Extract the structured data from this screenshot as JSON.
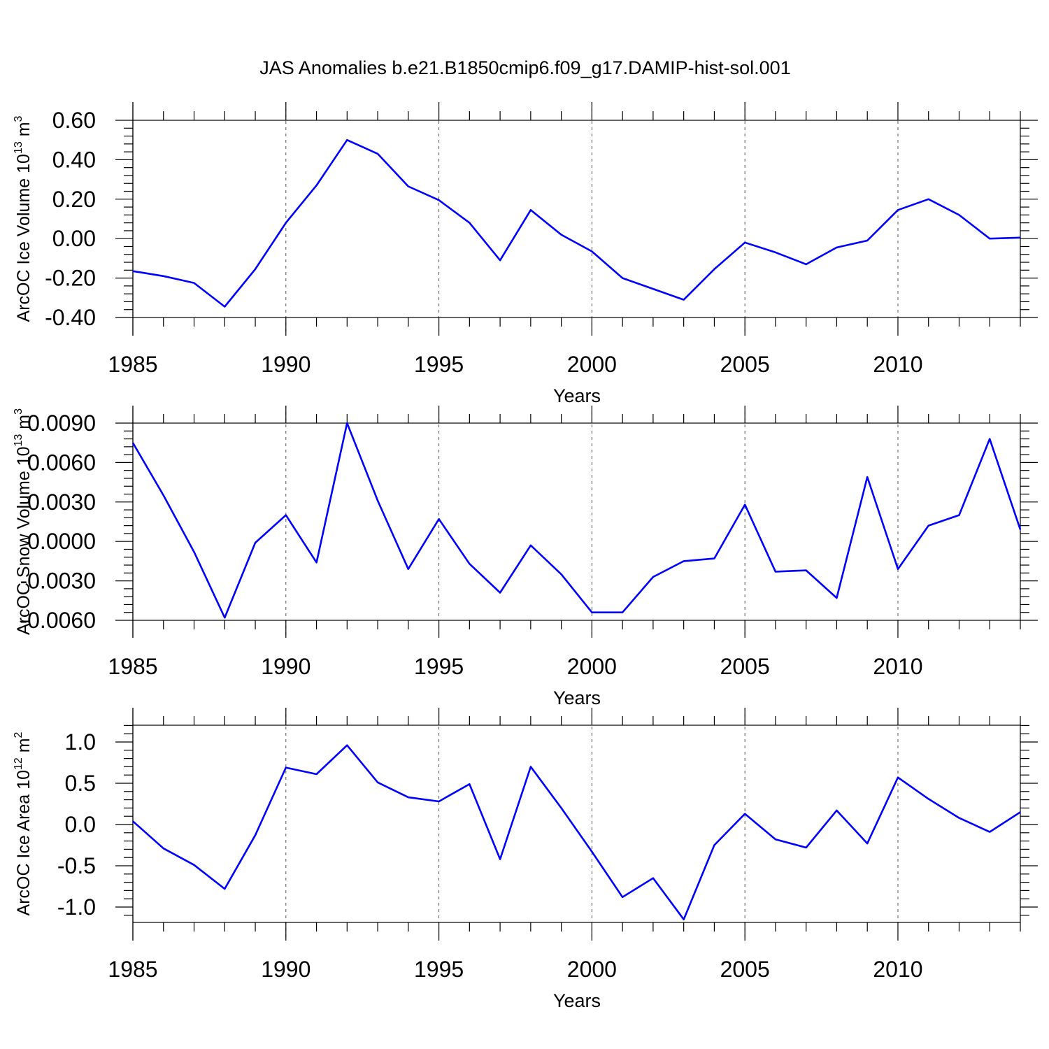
{
  "title": "JAS Anomalies b.e21.B1850cmip6.f09_g17.DAMIP-hist-sol.001",
  "colors": {
    "series": "#0000ff",
    "axis": "#000000",
    "grid": "#555555"
  },
  "chart_data": [
    {
      "type": "line",
      "title": "JAS Anomalies b.e21.B1850cmip6.f09_g17.DAMIP-hist-sol.001",
      "xlabel": "Years",
      "ylabel": {
        "text": "ArcOC Ice Volume 10",
        "exp": "13",
        "unit": " m",
        "unitExp": "3"
      },
      "xlim": [
        1985,
        2014
      ],
      "ylim": [
        -0.4,
        0.6
      ],
      "xticks": [
        1985,
        1990,
        1995,
        2000,
        2005,
        2010
      ],
      "xtick_labels": [
        "1985",
        "1990",
        "1995",
        "2000",
        "2005",
        "2010"
      ],
      "yticks": [
        -0.4,
        -0.2,
        0.0,
        0.2,
        0.4,
        0.6
      ],
      "ytick_labels": [
        "-0.40",
        "-0.20",
        "0.00",
        "0.20",
        "0.40",
        "0.60"
      ],
      "x": [
        1985,
        1986,
        1987,
        1988,
        1989,
        1990,
        1991,
        1992,
        1993,
        1994,
        1995,
        1996,
        1997,
        1998,
        1999,
        2000,
        2001,
        2002,
        2003,
        2004,
        2005,
        2006,
        2007,
        2008,
        2009,
        2010,
        2011,
        2012,
        2013,
        2014
      ],
      "series": [
        {
          "name": "ArcOC Ice Volume",
          "values": [
            -0.165,
            -0.19,
            -0.225,
            -0.345,
            -0.155,
            0.08,
            0.27,
            0.5,
            0.43,
            0.265,
            0.195,
            0.08,
            -0.11,
            0.145,
            0.02,
            -0.065,
            -0.2,
            -0.255,
            -0.31,
            -0.155,
            -0.02,
            -0.07,
            -0.13,
            -0.045,
            -0.01,
            0.145,
            0.2,
            0.12,
            0.0,
            0.005
          ]
        }
      ]
    },
    {
      "type": "line",
      "xlabel": "Years",
      "ylabel": {
        "text": "ArcOC Snow Volume 10",
        "exp": "13",
        "unit": " m",
        "unitExp": "3"
      },
      "xlim": [
        1985,
        2014
      ],
      "ylim": [
        -0.006,
        0.009
      ],
      "xticks": [
        1985,
        1990,
        1995,
        2000,
        2005,
        2010
      ],
      "xtick_labels": [
        "1985",
        "1990",
        "1995",
        "2000",
        "2005",
        "2010"
      ],
      "yticks": [
        -0.006,
        -0.003,
        0.0,
        0.003,
        0.006,
        0.009
      ],
      "ytick_labels": [
        "-0.0060",
        "-0.0030",
        "0.0000",
        "0.0030",
        "0.0060",
        "0.0090"
      ],
      "x": [
        1985,
        1986,
        1987,
        1988,
        1989,
        1990,
        1991,
        1992,
        1993,
        1994,
        1995,
        1996,
        1997,
        1998,
        1999,
        2000,
        2001,
        2002,
        2003,
        2004,
        2005,
        2006,
        2007,
        2008,
        2009,
        2010,
        2011,
        2012,
        2013,
        2014
      ],
      "series": [
        {
          "name": "ArcOC Snow Volume",
          "values": [
            0.0075,
            0.0035,
            -0.0008,
            -0.0058,
            -0.0001,
            0.002,
            -0.0016,
            0.009,
            0.0031,
            -0.0021,
            0.0017,
            -0.0017,
            -0.0039,
            -0.0003,
            -0.0025,
            -0.0054,
            -0.0054,
            -0.0027,
            -0.0015,
            -0.0013,
            0.0028,
            -0.0023,
            -0.0022,
            -0.0043,
            0.0049,
            -0.0021,
            0.0012,
            0.002,
            0.0078,
            0.0009
          ]
        }
      ]
    },
    {
      "type": "line",
      "xlabel": "Years",
      "ylabel": {
        "text": "ArcOC Ice Area 10",
        "exp": "12",
        "unit": " m",
        "unitExp": "2"
      },
      "xlim": [
        1985,
        2014
      ],
      "ylim": [
        -1.2,
        1.2
      ],
      "xticks": [
        1985,
        1990,
        1995,
        2000,
        2005,
        2010
      ],
      "xtick_labels": [
        "1985",
        "1990",
        "1995",
        "2000",
        "2005",
        "2010"
      ],
      "yticks": [
        -1.0,
        -0.5,
        0.0,
        0.5,
        1.0
      ],
      "ytick_labels": [
        "-1.0",
        "-0.5",
        "0.0",
        "0.5",
        "1.0"
      ],
      "x": [
        1985,
        1986,
        1987,
        1988,
        1989,
        1990,
        1991,
        1992,
        1993,
        1994,
        1995,
        1996,
        1997,
        1998,
        1999,
        2000,
        2001,
        2002,
        2003,
        2004,
        2005,
        2006,
        2007,
        2008,
        2009,
        2010,
        2011,
        2012,
        2013,
        2014
      ],
      "series": [
        {
          "name": "ArcOC Ice Area",
          "values": [
            0.04,
            -0.29,
            -0.49,
            -0.78,
            -0.13,
            0.69,
            0.61,
            0.96,
            0.51,
            0.33,
            0.28,
            0.49,
            -0.42,
            0.7,
            0.2,
            -0.33,
            -0.88,
            -0.65,
            -1.15,
            -0.25,
            0.13,
            -0.18,
            -0.28,
            0.17,
            -0.23,
            0.57,
            0.31,
            0.08,
            -0.09,
            0.15
          ]
        }
      ]
    }
  ]
}
